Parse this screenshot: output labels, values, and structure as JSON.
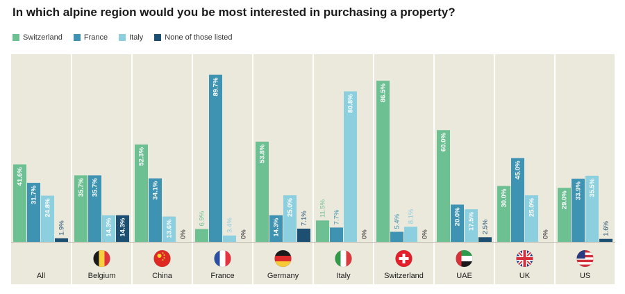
{
  "chart_data": {
    "type": "bar",
    "title": "In which alpine region would you be most interested in purchasing a property?",
    "categories": [
      "All",
      "Belgium",
      "China",
      "France",
      "Germany",
      "Italy",
      "Switzerland",
      "UAE",
      "UK",
      "US"
    ],
    "category_flags": [
      "",
      "belgium-flag-icon",
      "china-flag-icon",
      "france-flag-icon",
      "germany-flag-icon",
      "italy-flag-icon",
      "switzerland-flag-icon",
      "uae-flag-icon",
      "uk-flag-icon",
      "us-flag-icon"
    ],
    "series": [
      {
        "name": "Switzerland",
        "color": "#6dc092",
        "values": [
          41.6,
          35.7,
          52.3,
          6.9,
          53.8,
          11.5,
          86.5,
          60.0,
          30.0,
          29.0
        ],
        "labels": [
          "41.6%",
          "35.7%",
          "52.3%",
          "6.9%",
          "53.8%",
          "11.5%",
          "86.5%",
          "60.0%",
          "30.0%",
          "29.0%"
        ]
      },
      {
        "name": "France",
        "color": "#3e93b3",
        "values": [
          31.7,
          35.7,
          34.1,
          89.7,
          14.3,
          7.7,
          5.4,
          20.0,
          45.0,
          33.9
        ],
        "labels": [
          "31.7%",
          "35.7%",
          "34.1%",
          "89.7%",
          "14.3%",
          "7.7%",
          "5.4%",
          "20.0%",
          "45.0%",
          "33.9%"
        ]
      },
      {
        "name": "Italy",
        "color": "#8ccfdf",
        "values": [
          24.8,
          14.3,
          13.6,
          3.4,
          25.0,
          80.8,
          8.1,
          17.5,
          25.0,
          35.5
        ],
        "labels": [
          "24.8%",
          "14.3%",
          "13.6%",
          "3.4%",
          "25.0%",
          "80.8%",
          "8.1%",
          "17.5%",
          "25.0%",
          "35.5%"
        ]
      },
      {
        "name": "None of those listed",
        "color": "#1d4f72",
        "values": [
          1.9,
          14.3,
          0,
          0,
          7.1,
          0,
          0,
          2.5,
          0,
          1.6
        ],
        "labels": [
          "1.9%",
          "14.3%",
          "0%",
          "0%",
          "7.1%",
          "0%",
          "0%",
          "2.5%",
          "0%",
          "1.6%"
        ]
      }
    ],
    "ylim": [
      0,
      100
    ],
    "grid": false,
    "legend_position": "top-left",
    "background_color": "#ebe8dc"
  }
}
